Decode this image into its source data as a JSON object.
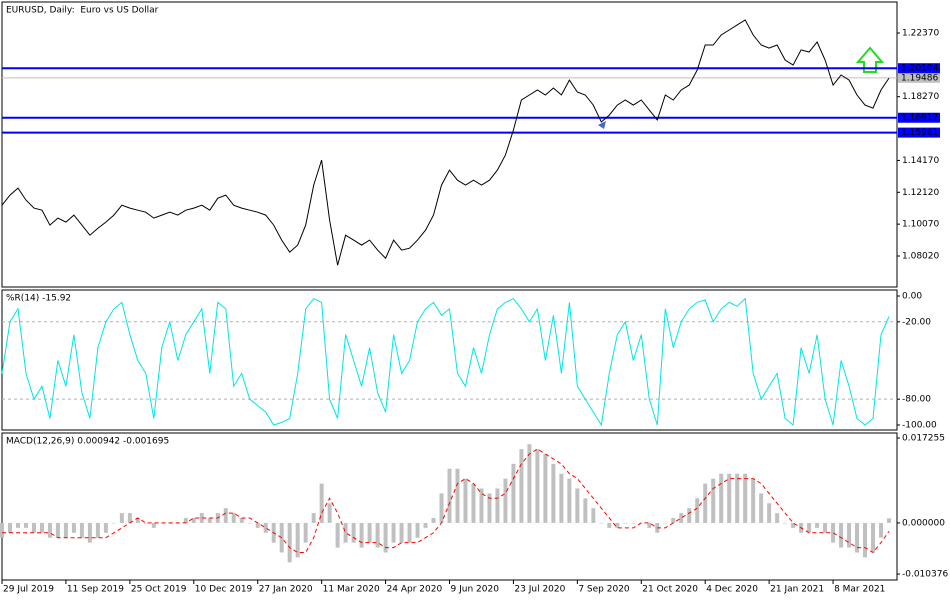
{
  "chart_data": [
    {
      "type": "line",
      "title": "EURUSD, Daily:  Euro vs US Dollar",
      "series": [
        {
          "name": "EURUSD",
          "color": "#000000",
          "values": [
            1.1129,
            1.1194,
            1.1239,
            1.1162,
            1.111,
            1.1097,
            1.1001,
            1.1046,
            1.102,
            1.1065,
            1.1001,
            1.0936,
            1.0981,
            1.102,
            1.1065,
            1.1129,
            1.111,
            1.1097,
            1.1084,
            1.1046,
            1.1065,
            1.1084,
            1.1065,
            1.1097,
            1.111,
            1.1129,
            1.1097,
            1.1174,
            1.1194,
            1.1129,
            1.111,
            1.1097,
            1.1084,
            1.1065,
            1.1001,
            1.0904,
            1.0827,
            1.0872,
            1.1001,
            1.1258,
            1.1419,
            1.1033,
            1.0743,
            1.0936,
            1.0904,
            1.0872,
            1.0904,
            1.084,
            1.0788,
            1.0904,
            1.084,
            1.0852,
            1.0904,
            1.0968,
            1.1065,
            1.1258,
            1.1355,
            1.129,
            1.1258,
            1.129,
            1.1258,
            1.129,
            1.1355,
            1.1451,
            1.1612,
            1.1806,
            1.1838,
            1.187,
            1.1838,
            1.1883,
            1.1838,
            1.1934,
            1.1857,
            1.1838,
            1.1773,
            1.1664,
            1.1709,
            1.1773,
            1.1806,
            1.1773,
            1.1806,
            1.1741,
            1.1677,
            1.1838,
            1.1806,
            1.187,
            1.1902,
            1.1999,
            1.216,
            1.216,
            1.2224,
            1.2256,
            1.2289,
            1.2321,
            1.2224,
            1.216,
            1.214,
            1.216,
            1.2063,
            1.2031,
            1.2128,
            1.2115,
            1.2179,
            1.2063,
            1.1902,
            1.1967,
            1.1934,
            1.1838,
            1.1773,
            1.1754,
            1.187,
            1.1947
          ]
        }
      ],
      "ylim": [
        1.06025,
        1.24365
      ],
      "yticks": [
        {
          "value": 1.2237,
          "label": "1.22370"
        },
        {
          "value": 1.1827,
          "label": "1.18270"
        },
        {
          "value": 1.1417,
          "label": "1.14170"
        },
        {
          "value": 1.1212,
          "label": "1.12120"
        },
        {
          "value": 1.1007,
          "label": "1.10070"
        },
        {
          "value": 1.0802,
          "label": "1.08020"
        }
      ],
      "hlines": [
        {
          "value": 1.20104,
          "label": "1.20104",
          "color": "#0000ff"
        },
        {
          "value": 1.16917,
          "label": "1.16917",
          "color": "#0000ff"
        },
        {
          "value": 1.15961,
          "label": "1.15961",
          "color": "#0000ff"
        }
      ],
      "current_price": {
        "value": 1.19486,
        "label": "1.19486",
        "color": "#c0c0c0"
      }
    },
    {
      "type": "line",
      "title": "%R(14) -15.92",
      "series": [
        {
          "name": "%R(14)",
          "color": "#00e5e5",
          "values": [
            -60,
            -20,
            -10,
            -60,
            -80,
            -70,
            -95,
            -50,
            -70,
            -30,
            -75,
            -95,
            -40,
            -20,
            -10,
            -5,
            -30,
            -50,
            -60,
            -95,
            -40,
            -20,
            -50,
            -30,
            -20,
            -10,
            -60,
            -5,
            -10,
            -70,
            -60,
            -80,
            -85,
            -90,
            -100,
            -98,
            -95,
            -60,
            -10,
            -2,
            -5,
            -80,
            -95,
            -30,
            -50,
            -70,
            -40,
            -75,
            -90,
            -30,
            -60,
            -50,
            -20,
            -10,
            -5,
            -15,
            -10,
            -60,
            -70,
            -40,
            -60,
            -30,
            -10,
            -5,
            -2,
            -10,
            -20,
            -10,
            -50,
            -15,
            -60,
            -5,
            -70,
            -80,
            -90,
            -100,
            -60,
            -30,
            -20,
            -50,
            -30,
            -80,
            -100,
            -10,
            -40,
            -20,
            -10,
            -5,
            -3,
            -20,
            -10,
            -5,
            -8,
            -2,
            -60,
            -80,
            -70,
            -60,
            -95,
            -100,
            -40,
            -60,
            -30,
            -80,
            -100,
            -50,
            -70,
            -95,
            -100,
            -95,
            -30,
            -15.92
          ]
        }
      ],
      "ylim": [
        -103.9,
        4.65
      ],
      "yticks": [
        {
          "value": 0,
          "label": "0.00"
        },
        {
          "value": -20,
          "label": "-20.00"
        },
        {
          "value": -80,
          "label": "-80.00"
        },
        {
          "value": -100,
          "label": "-100.00"
        }
      ],
      "levels": [
        -20,
        -80
      ]
    },
    {
      "type": "macd",
      "title": "MACD(12,26,9) 0.000942 -0.001695",
      "series": [
        {
          "name": "MACD",
          "color": "#c0c0c0",
          "values": [
            -0.003,
            -0.002,
            -0.001,
            -0.001,
            -0.002,
            -0.002,
            -0.003,
            -0.003,
            -0.003,
            -0.002,
            -0.003,
            -0.004,
            -0.003,
            -0.002,
            0.0,
            0.002,
            0.002,
            0.001,
            0.0,
            -0.001,
            0.0,
            0.0,
            0.0,
            0.001,
            0.001,
            0.002,
            0.001,
            0.002,
            0.003,
            0.002,
            0.001,
            0.0,
            -0.001,
            -0.002,
            -0.004,
            -0.006,
            -0.008,
            -0.007,
            -0.004,
            0.002,
            0.008,
            0.004,
            -0.005,
            -0.004,
            -0.004,
            -0.005,
            -0.004,
            -0.005,
            -0.006,
            -0.004,
            -0.004,
            -0.004,
            -0.003,
            -0.001,
            0.001,
            0.006,
            0.011,
            0.011,
            0.009,
            0.008,
            0.007,
            0.006,
            0.007,
            0.009,
            0.012,
            0.015,
            0.016,
            0.015,
            0.014,
            0.012,
            0.01,
            0.009,
            0.007,
            0.005,
            0.003,
            0.0,
            -0.001,
            -0.001,
            0.0,
            0.0,
            0.0,
            -0.001,
            -0.002,
            0.0,
            0.001,
            0.002,
            0.003,
            0.005,
            0.008,
            0.009,
            0.01,
            0.01,
            0.01,
            0.01,
            0.009,
            0.006,
            0.004,
            0.002,
            0.0,
            -0.001,
            -0.002,
            -0.002,
            -0.001,
            -0.002,
            -0.004,
            -0.005,
            -0.005,
            -0.006,
            -0.007,
            -0.006,
            -0.003,
            0.000942
          ]
        },
        {
          "name": "Signal",
          "color": "#ff0000",
          "values": [
            -0.002,
            -0.002,
            -0.002,
            -0.002,
            -0.002,
            -0.002,
            -0.002,
            -0.003,
            -0.003,
            -0.003,
            -0.003,
            -0.003,
            -0.003,
            -0.003,
            -0.002,
            -0.001,
            0.0,
            0.001,
            0.0,
            0.0,
            0.0,
            0.0,
            0.0,
            0.0,
            0.001,
            0.001,
            0.001,
            0.001,
            0.002,
            0.002,
            0.001,
            0.001,
            0.0,
            -0.001,
            -0.002,
            -0.003,
            -0.005,
            -0.006,
            -0.006,
            -0.003,
            0.002,
            0.005,
            0.002,
            -0.002,
            -0.003,
            -0.004,
            -0.004,
            -0.004,
            -0.005,
            -0.005,
            -0.004,
            -0.004,
            -0.004,
            -0.003,
            -0.002,
            0.0,
            0.004,
            0.008,
            0.009,
            0.008,
            0.006,
            0.005,
            0.005,
            0.006,
            0.009,
            0.012,
            0.014,
            0.015,
            0.014,
            0.013,
            0.012,
            0.01,
            0.009,
            0.007,
            0.005,
            0.003,
            0.001,
            -0.001,
            -0.001,
            -0.001,
            0.0,
            0.0,
            -0.001,
            -0.001,
            0.0,
            0.001,
            0.002,
            0.003,
            0.005,
            0.007,
            0.008,
            0.009,
            0.009,
            0.009,
            0.009,
            0.008,
            0.006,
            0.004,
            0.002,
            0.0,
            -0.001,
            -0.002,
            -0.002,
            -0.002,
            -0.002,
            -0.003,
            -0.004,
            -0.005,
            -0.005,
            -0.006,
            -0.004,
            -0.001695
          ]
        }
      ],
      "ylim": [
        -0.01159,
        0.01827
      ],
      "yticks": [
        0.017255,
        {
          "value": 0,
          "label": "0.000000"
        },
        {
          "value": -0.010376,
          "label": "-0.010376"
        }
      ],
      "xlim": [
        0,
        112
      ],
      "xticks": [
        {
          "value": 0,
          "label": "29 Jul 2019"
        },
        {
          "value": 8,
          "label": "11 Sep 2019"
        },
        {
          "value": 16,
          "label": "25 Oct 2019"
        },
        {
          "value": 24,
          "label": "10 Dec 2019"
        },
        {
          "value": 32,
          "label": "27 Jan 2020"
        },
        {
          "value": 40,
          "label": "11 Mar 2020"
        },
        {
          "value": 48,
          "label": "24 Apr 2020"
        },
        {
          "value": 56,
          "label": "9 Jun 2020"
        },
        {
          "value": 64,
          "label": "23 Jul 2020"
        },
        {
          "value": 72,
          "label": "7 Sep 2020"
        },
        {
          "value": 80,
          "label": "21 Oct 2020"
        },
        {
          "value": 88,
          "label": "4 Dec 2020"
        },
        {
          "value": 96,
          "label": "21 Jan 2021"
        },
        {
          "value": 104,
          "label": "8 Mar 2021"
        }
      ]
    }
  ]
}
